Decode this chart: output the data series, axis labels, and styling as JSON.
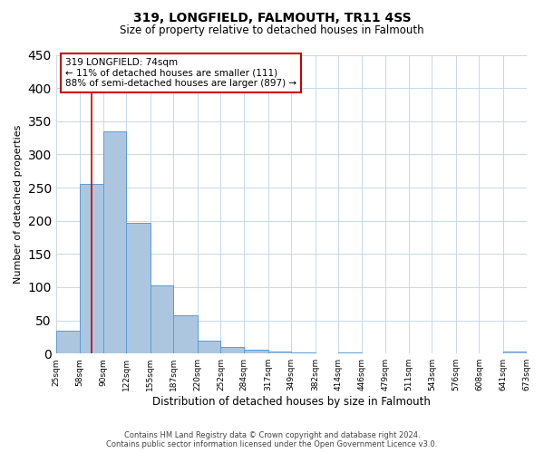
{
  "title": "319, LONGFIELD, FALMOUTH, TR11 4SS",
  "subtitle": "Size of property relative to detached houses in Falmouth",
  "xlabel": "Distribution of detached houses by size in Falmouth",
  "ylabel": "Number of detached properties",
  "bar_edges": [
    25,
    58,
    90,
    122,
    155,
    187,
    220,
    252,
    284,
    317,
    349,
    382,
    414,
    446,
    479,
    511,
    543,
    576,
    608,
    641,
    673
  ],
  "bar_heights": [
    35,
    255,
    335,
    197,
    103,
    57,
    20,
    10,
    6,
    3,
    2,
    0,
    1,
    0,
    0,
    0,
    0,
    0,
    0,
    3
  ],
  "tick_labels": [
    "25sqm",
    "58sqm",
    "90sqm",
    "122sqm",
    "155sqm",
    "187sqm",
    "220sqm",
    "252sqm",
    "284sqm",
    "317sqm",
    "349sqm",
    "382sqm",
    "414sqm",
    "446sqm",
    "479sqm",
    "511sqm",
    "543sqm",
    "576sqm",
    "608sqm",
    "641sqm",
    "673sqm"
  ],
  "bar_color": "#adc6e0",
  "bar_edge_color": "#5b9bd5",
  "property_line_x": 74,
  "property_line_color": "#cc0000",
  "annotation_box_edge_color": "#cc0000",
  "annotation_lines": [
    "319 LONGFIELD: 74sqm",
    "← 11% of detached houses are smaller (111)",
    "88% of semi-detached houses are larger (897) →"
  ],
  "ylim": [
    0,
    450
  ],
  "yticks": [
    0,
    50,
    100,
    150,
    200,
    250,
    300,
    350,
    400,
    450
  ],
  "footer_line1": "Contains HM Land Registry data © Crown copyright and database right 2024.",
  "footer_line2": "Contains public sector information licensed under the Open Government Licence v3.0.",
  "background_color": "#ffffff",
  "grid_color": "#c8d8e8"
}
